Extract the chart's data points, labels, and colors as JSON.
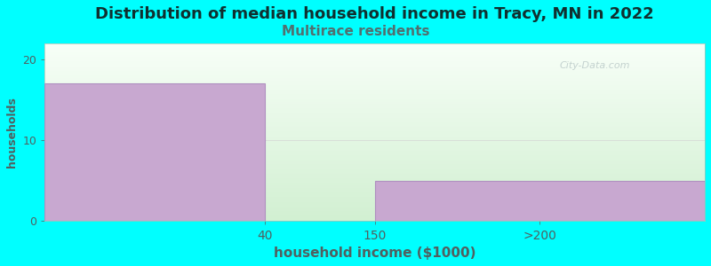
{
  "title": "Distribution of median household income in Tracy, MN in 2022",
  "subtitle": "Multirace residents",
  "xlabel": "household income ($1000)",
  "ylabel": "households",
  "background_color": "#00ffff",
  "bar_color": "#c8a8d0",
  "bar_edge_color": "#b090c0",
  "watermark": "City-Data.com",
  "bar1_height": 17,
  "bar2_height": 5,
  "bar1_x_start": 0,
  "bar1_x_end": 1,
  "bar2_x_start": 1.5,
  "bar2_x_end": 3.0,
  "xtick_positions": [
    1.0,
    1.5,
    2.25
  ],
  "xtick_labels": [
    "40",
    "150",
    ">200"
  ],
  "yticks": [
    0,
    10,
    20
  ],
  "ylim": [
    0,
    22
  ],
  "xlim": [
    0,
    3.0
  ],
  "title_fontsize": 13,
  "subtitle_fontsize": 11,
  "subtitle_color": "#507070",
  "axis_label_color": "#506060",
  "tick_color": "#506060",
  "title_color": "#103030",
  "xlabel_fontsize": 11,
  "ylabel_fontsize": 9,
  "plot_bg_top_color": "#f8fff8",
  "plot_bg_bottom_color": "#d8f0d0"
}
